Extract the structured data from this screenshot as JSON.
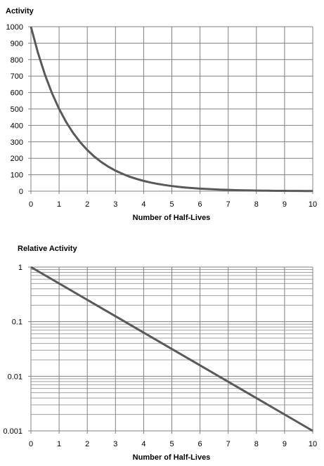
{
  "chart_data": [
    {
      "type": "line",
      "title": "",
      "ylabel": "Activity",
      "xlabel": "Number of Half-Lives",
      "xlim": [
        0,
        10
      ],
      "ylim": [
        0,
        1000
      ],
      "x_ticks": [
        "0",
        "1",
        "2",
        "3",
        "4",
        "5",
        "6",
        "7",
        "8",
        "9",
        "10"
      ],
      "y_ticks": [
        "0",
        "100",
        "200",
        "300",
        "400",
        "500",
        "600",
        "700",
        "800",
        "900",
        "1000"
      ],
      "grid": true,
      "y_scale": "linear",
      "line_color": "#595959",
      "series": [
        {
          "x": [
            0,
            0.25,
            0.5,
            0.75,
            1,
            1.25,
            1.5,
            1.75,
            2,
            2.25,
            2.5,
            2.75,
            3,
            3.25,
            3.5,
            3.75,
            4,
            4.25,
            4.5,
            4.75,
            5,
            5.25,
            5.5,
            5.75,
            6,
            6.25,
            6.5,
            6.75,
            7,
            7.25,
            7.5,
            7.75,
            8,
            8.25,
            8.5,
            8.75,
            9,
            9.25,
            9.5,
            9.75,
            10
          ],
          "y": [
            1000,
            840.9,
            707.1,
            594.6,
            500,
            420.4,
            353.6,
            297.3,
            250,
            210.2,
            176.8,
            148.7,
            125,
            105.1,
            88.4,
            74.3,
            62.5,
            52.6,
            44.2,
            37.2,
            31.3,
            26.3,
            22.1,
            18.6,
            15.6,
            13.1,
            11,
            9.3,
            7.8,
            6.6,
            5.5,
            4.6,
            3.9,
            3.3,
            2.8,
            2.3,
            2,
            1.6,
            1.4,
            1.2,
            1
          ]
        }
      ]
    },
    {
      "type": "line",
      "title": "",
      "ylabel": "Relative Activity",
      "xlabel": "Number of Half-Lives",
      "xlim": [
        0,
        10
      ],
      "ylim": [
        0.001,
        1
      ],
      "x_ticks": [
        "0",
        "1",
        "2",
        "3",
        "4",
        "5",
        "6",
        "7",
        "8",
        "9",
        "10"
      ],
      "y_ticks": [
        "0.001",
        "0.01",
        "0.1",
        "1"
      ],
      "grid": true,
      "y_scale": "log",
      "line_color": "#595959",
      "series": [
        {
          "x": [
            0,
            10
          ],
          "y": [
            1,
            0.001
          ]
        }
      ]
    }
  ]
}
